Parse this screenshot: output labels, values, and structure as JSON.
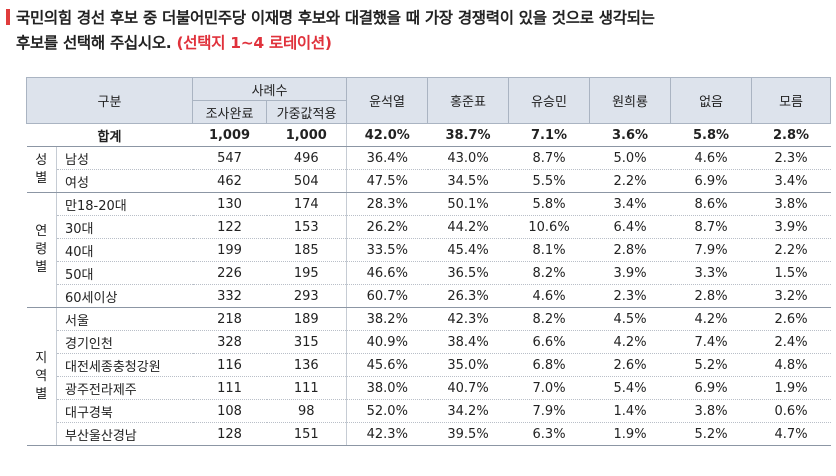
{
  "title": {
    "line1": "국민의힘 경선 후보 중 더불어민주당 이재명 후보와 대결했을 때 가장 경쟁력이 있을 것으로 생각되는",
    "line2_text": "후보를 선택해 주십시오.",
    "line2_note": "(선택지 1~4 로테이션)"
  },
  "accent_color": "#e03c3c",
  "header": {
    "category": "구분",
    "sample": "사례수",
    "surveyed": "조사완료",
    "weighted": "가중값적용",
    "options": [
      "윤석열",
      "홍준표",
      "유승민",
      "원희룡",
      "없음",
      "모름"
    ]
  },
  "total": {
    "label": "합계",
    "cells": [
      "1,009",
      "1,000",
      "42.0%",
      "38.7%",
      "7.1%",
      "3.6%",
      "5.8%",
      "2.8%"
    ]
  },
  "groups": [
    {
      "name": "성별",
      "rows": [
        {
          "label": "남성",
          "cells": [
            "547",
            "496",
            "36.4%",
            "43.0%",
            "8.7%",
            "5.0%",
            "4.6%",
            "2.3%"
          ]
        },
        {
          "label": "여성",
          "cells": [
            "462",
            "504",
            "47.5%",
            "34.5%",
            "5.5%",
            "2.2%",
            "6.9%",
            "3.4%"
          ]
        }
      ]
    },
    {
      "name": "연령별",
      "rows": [
        {
          "label": "만18-20대",
          "cells": [
            "130",
            "174",
            "28.3%",
            "50.1%",
            "5.8%",
            "3.4%",
            "8.6%",
            "3.8%"
          ]
        },
        {
          "label": "30대",
          "cells": [
            "122",
            "153",
            "26.2%",
            "44.2%",
            "10.6%",
            "6.4%",
            "8.7%",
            "3.9%"
          ]
        },
        {
          "label": "40대",
          "cells": [
            "199",
            "185",
            "33.5%",
            "45.4%",
            "8.1%",
            "2.8%",
            "7.9%",
            "2.2%"
          ]
        },
        {
          "label": "50대",
          "cells": [
            "226",
            "195",
            "46.6%",
            "36.5%",
            "8.2%",
            "3.9%",
            "3.3%",
            "1.5%"
          ]
        },
        {
          "label": "60세이상",
          "cells": [
            "332",
            "293",
            "60.7%",
            "26.3%",
            "4.6%",
            "2.3%",
            "2.8%",
            "3.2%"
          ]
        }
      ]
    },
    {
      "name": "지역별",
      "rows": [
        {
          "label": "서울",
          "cells": [
            "218",
            "189",
            "38.2%",
            "42.3%",
            "8.2%",
            "4.5%",
            "4.2%",
            "2.6%"
          ]
        },
        {
          "label": "경기인천",
          "cells": [
            "328",
            "315",
            "40.9%",
            "38.4%",
            "6.6%",
            "4.2%",
            "7.4%",
            "2.4%"
          ]
        },
        {
          "label": "대전세종충청강원",
          "cells": [
            "116",
            "136",
            "45.6%",
            "35.0%",
            "6.8%",
            "2.6%",
            "5.2%",
            "4.8%"
          ]
        },
        {
          "label": "광주전라제주",
          "cells": [
            "111",
            "111",
            "38.0%",
            "40.7%",
            "7.0%",
            "5.4%",
            "6.9%",
            "1.9%"
          ]
        },
        {
          "label": "대구경북",
          "cells": [
            "108",
            "98",
            "52.0%",
            "34.2%",
            "7.9%",
            "1.4%",
            "3.8%",
            "0.6%"
          ]
        },
        {
          "label": "부산울산경남",
          "cells": [
            "128",
            "151",
            "42.3%",
            "39.5%",
            "6.3%",
            "1.9%",
            "5.2%",
            "4.7%"
          ]
        }
      ]
    }
  ]
}
